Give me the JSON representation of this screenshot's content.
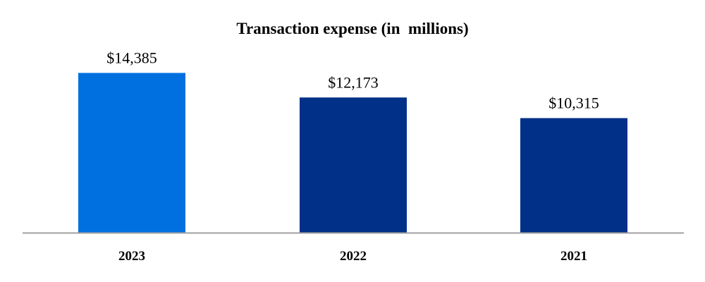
{
  "chart_data": {
    "type": "bar",
    "title": "Transaction expense (in  millions)",
    "categories": [
      "2023",
      "2022",
      "2021"
    ],
    "values": [
      14385,
      12173,
      10315
    ],
    "data_labels": [
      "$14,385",
      "$12,173",
      "$10,315"
    ],
    "colors": [
      "#0070E0",
      "#003087",
      "#003087"
    ],
    "axis_color": "#A0A0A0",
    "ylim": [
      0,
      16000
    ],
    "xlabel": "",
    "ylabel": "",
    "grid": false,
    "legend": "none"
  }
}
